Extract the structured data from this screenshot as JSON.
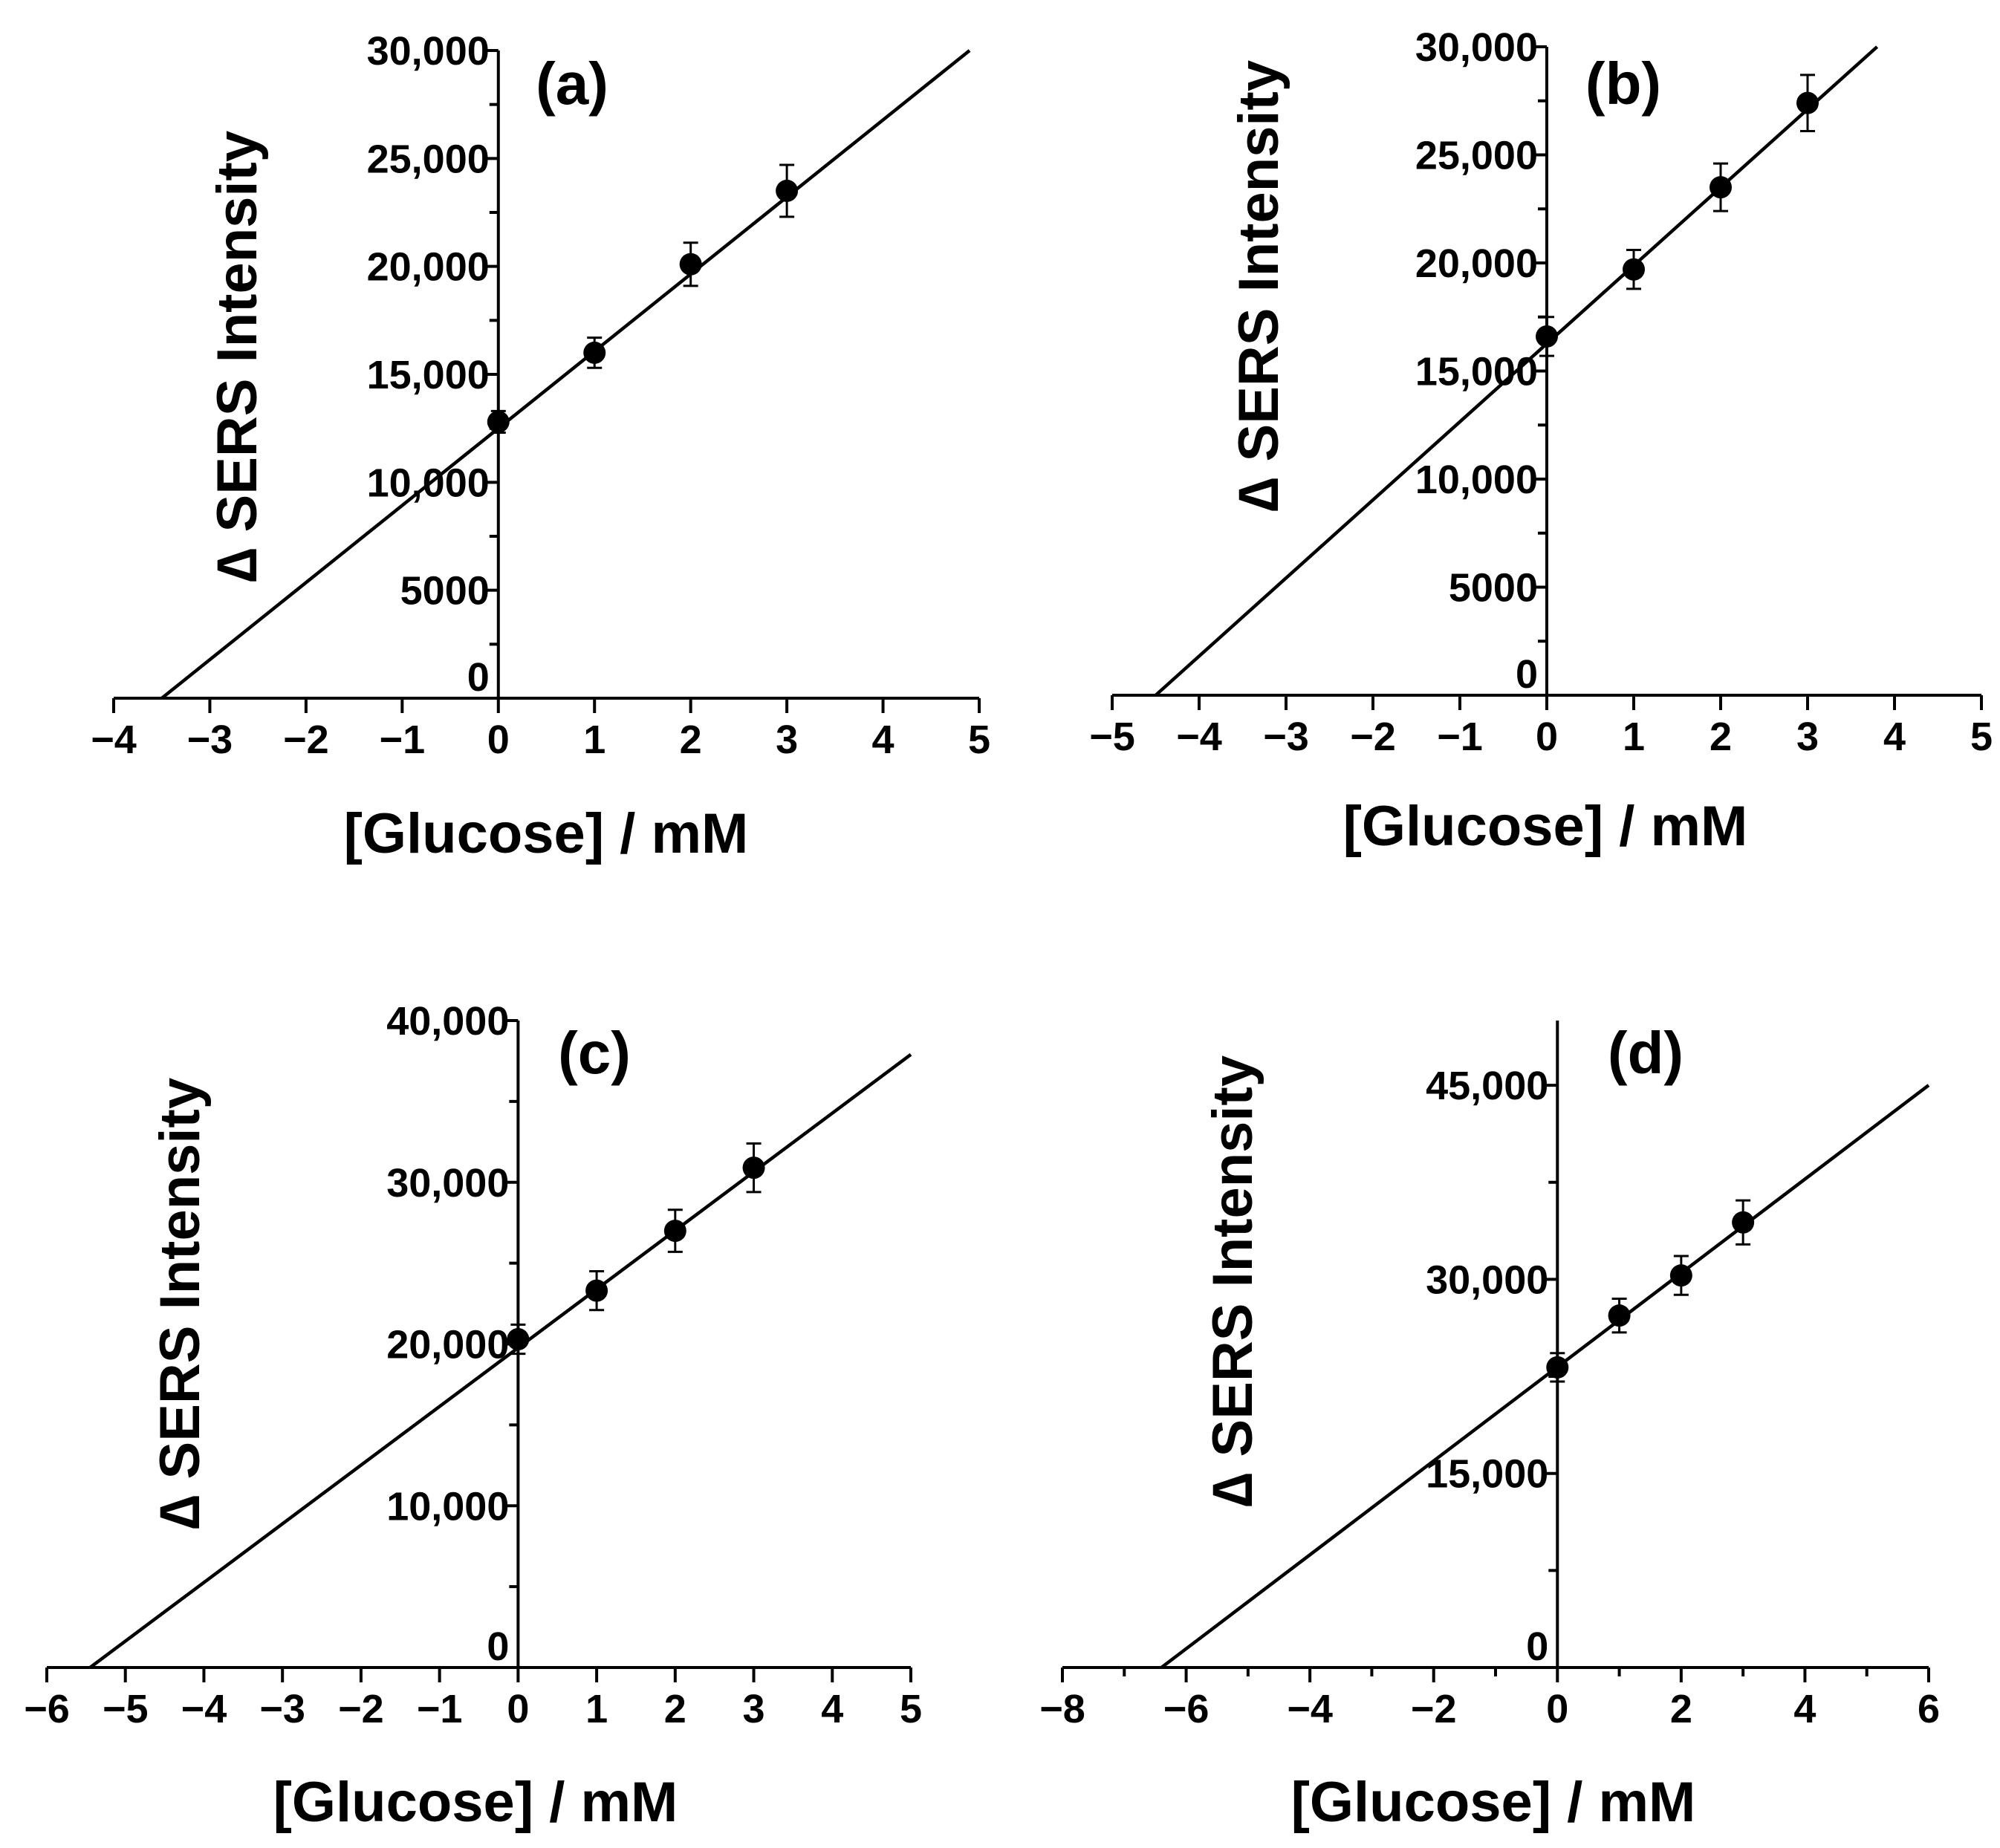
{
  "chart_data": [
    {
      "type": "scatter",
      "panel_label": "(a)",
      "xlabel": "[Glucose] / mM",
      "ylabel": "∆ SERS Intensity",
      "xlim": [
        -4,
        5
      ],
      "ylim": [
        0,
        30000
      ],
      "x_ticks": [
        -4,
        -3,
        -2,
        -1,
        0,
        1,
        2,
        3,
        4,
        5
      ],
      "x_tick_labels": [
        "−4",
        "−3",
        "−2",
        "−1",
        "0",
        "1",
        "2",
        "3",
        "4",
        "5"
      ],
      "y_ticks": [
        0,
        5000,
        10000,
        15000,
        20000,
        25000,
        30000
      ],
      "y_tick_labels": [
        "0",
        "5000",
        "10,000",
        "15,000",
        "20,000",
        "25,000",
        "30,000"
      ],
      "y_minor_ticks": [
        2500,
        7500,
        12500,
        17500,
        22500,
        27500
      ],
      "series": [
        {
          "name": "data",
          "x": [
            0,
            1,
            2,
            3
          ],
          "y": [
            12800,
            16000,
            20100,
            23500
          ],
          "yerr": [
            500,
            700,
            1000,
            1200
          ]
        }
      ],
      "fit_line": {
        "x": [
          -3.5,
          4.9
        ],
        "y": [
          0,
          30000
        ]
      }
    },
    {
      "type": "scatter",
      "panel_label": "(b)",
      "xlabel": "[Glucose] / mM",
      "ylabel": "∆ SERS Intensity",
      "xlim": [
        -5,
        5
      ],
      "ylim": [
        0,
        30000
      ],
      "x_ticks": [
        -5,
        -4,
        -3,
        -2,
        -1,
        0,
        1,
        2,
        3,
        4,
        5
      ],
      "x_tick_labels": [
        "−5",
        "−4",
        "−3",
        "−2",
        "−1",
        "0",
        "1",
        "2",
        "3",
        "4",
        "5"
      ],
      "y_ticks": [
        0,
        5000,
        10000,
        15000,
        20000,
        25000,
        30000
      ],
      "y_tick_labels": [
        "0",
        "5000",
        "10,000",
        "15,000",
        "20,000",
        "25,000",
        "30,000"
      ],
      "y_minor_ticks": [
        2500,
        7500,
        12500,
        17500,
        22500,
        27500
      ],
      "series": [
        {
          "name": "data",
          "x": [
            0,
            1,
            2,
            3
          ],
          "y": [
            16600,
            19700,
            23500,
            27400
          ],
          "yerr": [
            900,
            900,
            1100,
            1300
          ]
        }
      ],
      "fit_line": {
        "x": [
          -4.5,
          3.8
        ],
        "y": [
          0,
          30000
        ]
      }
    },
    {
      "type": "scatter",
      "panel_label": "(c)",
      "xlabel": "[Glucose] / mM",
      "ylabel": "∆ SERS Intensity",
      "xlim": [
        -6,
        5
      ],
      "ylim": [
        0,
        40000
      ],
      "x_ticks": [
        -6,
        -5,
        -4,
        -3,
        -2,
        -1,
        0,
        1,
        2,
        3,
        4,
        5
      ],
      "x_tick_labels": [
        "−6",
        "−5",
        "−4",
        "−3",
        "−2",
        "−1",
        "0",
        "1",
        "2",
        "3",
        "4",
        "5"
      ],
      "y_ticks": [
        0,
        10000,
        20000,
        30000,
        40000
      ],
      "y_tick_labels": [
        "0",
        "10,000",
        "20,000",
        "30,000",
        "40,000"
      ],
      "y_minor_ticks": [
        5000,
        15000,
        25000,
        35000
      ],
      "series": [
        {
          "name": "data",
          "x": [
            0,
            1,
            2,
            3
          ],
          "y": [
            20300,
            23300,
            27000,
            30900
          ],
          "yerr": [
            900,
            1200,
            1300,
            1500
          ]
        }
      ],
      "fit_line": {
        "x": [
          -5.45,
          5
        ],
        "y": [
          0,
          37900
        ]
      }
    },
    {
      "type": "scatter",
      "panel_label": "(d)",
      "xlabel": "[Glucose] / mM",
      "ylabel": "∆ SERS Intensity",
      "xlim": [
        -8,
        6
      ],
      "ylim": [
        0,
        50000
      ],
      "x_ticks": [
        -8,
        -6,
        -4,
        -2,
        0,
        2,
        4,
        6
      ],
      "x_tick_labels": [
        "−8",
        "−6",
        "−4",
        "−2",
        "0",
        "2",
        "4",
        "6"
      ],
      "x_minor_ticks": [
        -7,
        -5,
        -3,
        -1,
        1,
        3,
        5
      ],
      "y_ticks": [
        0,
        15000,
        30000,
        45000
      ],
      "y_tick_labels": [
        "0",
        "15,000",
        "30,000",
        "45,000"
      ],
      "y_minor_ticks": [
        7500,
        22500,
        37500
      ],
      "series": [
        {
          "name": "data",
          "x": [
            0,
            1,
            2,
            3
          ],
          "y": [
            23200,
            27200,
            30300,
            34400
          ],
          "yerr": [
            1100,
            1300,
            1500,
            1700
          ]
        }
      ],
      "fit_line": {
        "x": [
          -6.4,
          6
        ],
        "y": [
          0,
          45000
        ]
      }
    }
  ]
}
